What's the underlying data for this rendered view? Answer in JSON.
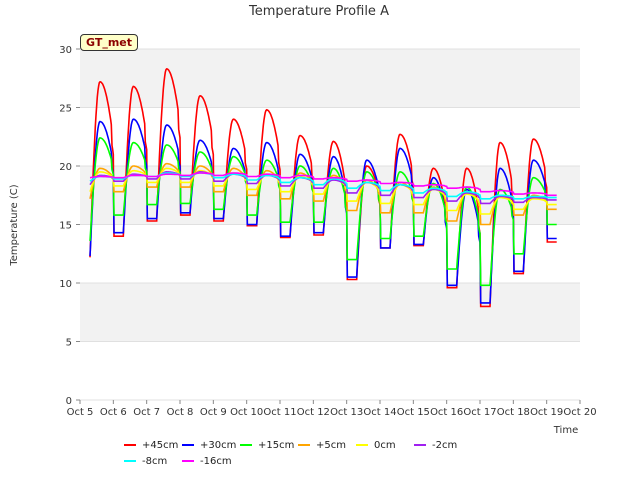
{
  "badge": "GT_met",
  "chart_data": {
    "type": "line",
    "title": "Temperature Profile A",
    "xlabel": "Time",
    "ylabel": "Temperature (C)",
    "ylim": [
      0,
      30
    ],
    "yticks": [
      0,
      5,
      10,
      15,
      20,
      25,
      30
    ],
    "xlim": [
      5,
      20
    ],
    "xticks": [
      5,
      6,
      7,
      8,
      9,
      10,
      11,
      12,
      13,
      14,
      15,
      16,
      17,
      18,
      19,
      20
    ],
    "xtick_labels": [
      "Oct 5",
      "Oct 6",
      "Oct 7",
      "Oct 8",
      "Oct 9",
      "Oct 10",
      "Oct 11",
      "Oct 12",
      "Oct 13",
      "Oct 14",
      "Oct 15",
      "Oct 16",
      "Oct 17",
      "Oct 18",
      "Oct 19",
      "Oct 20"
    ],
    "x_start": 5.3,
    "x_end": 19.3,
    "days": [
      5,
      6,
      7,
      8,
      9,
      10,
      11,
      12,
      13,
      14,
      15,
      16,
      17,
      18,
      19
    ],
    "grid": "alternating horizontal bands",
    "legend_position": "bottom",
    "series": [
      {
        "name": "+45cm",
        "color": "#ff0000",
        "maxs": [
          27.2,
          26.8,
          28.3,
          26.0,
          24.0,
          24.8,
          22.6,
          22.1,
          20.0,
          22.7,
          19.8,
          19.8,
          22.0,
          22.3
        ],
        "mins": [
          12.2,
          14.0,
          15.3,
          15.8,
          15.3,
          14.9,
          13.9,
          14.1,
          10.3,
          13.0,
          13.2,
          9.6,
          8.0,
          10.8,
          13.5
        ]
      },
      {
        "name": "+30cm",
        "color": "#0000ff",
        "maxs": [
          23.8,
          24.0,
          23.5,
          22.2,
          21.5,
          22.0,
          21.0,
          20.8,
          20.5,
          21.5,
          19.0,
          18.0,
          19.8,
          20.5
        ],
        "mins": [
          12.3,
          14.3,
          15.5,
          16.0,
          15.5,
          15.0,
          14.0,
          14.3,
          10.5,
          13.0,
          13.3,
          9.8,
          8.3,
          11.0,
          13.8
        ]
      },
      {
        "name": "+15cm",
        "color": "#00ff00",
        "maxs": [
          22.4,
          22.0,
          21.8,
          21.2,
          20.8,
          20.5,
          20.0,
          19.8,
          19.5,
          19.5,
          18.5,
          18.2,
          18.0,
          19.0
        ],
        "mins": [
          13.6,
          15.8,
          16.7,
          16.8,
          16.3,
          15.8,
          15.2,
          15.2,
          12.0,
          13.8,
          14.0,
          11.2,
          9.8,
          12.5,
          15.0
        ]
      },
      {
        "name": "+5cm",
        "color": "#ffa500",
        "maxs": [
          19.8,
          20.0,
          20.2,
          20.0,
          19.8,
          19.6,
          19.4,
          19.2,
          18.8,
          18.6,
          18.2,
          17.8,
          17.5,
          17.5
        ],
        "mins": [
          17.2,
          17.8,
          18.2,
          18.2,
          17.8,
          17.5,
          17.2,
          17.0,
          16.2,
          16.0,
          16.0,
          15.3,
          15.0,
          15.8,
          16.3
        ]
      },
      {
        "name": "0cm",
        "color": "#ffff00",
        "maxs": [
          19.5,
          19.6,
          19.8,
          19.6,
          19.4,
          19.3,
          19.1,
          18.9,
          18.6,
          18.4,
          18.0,
          17.6,
          17.3,
          17.2
        ],
        "mins": [
          17.8,
          18.3,
          18.6,
          18.6,
          18.3,
          18.0,
          17.8,
          17.6,
          17.0,
          16.8,
          16.7,
          16.2,
          15.9,
          16.3,
          16.7
        ]
      },
      {
        "name": "-2cm",
        "color": "#a020f0",
        "maxs": [
          19.2,
          19.3,
          19.5,
          19.5,
          19.3,
          19.2,
          19.0,
          18.8,
          18.6,
          18.4,
          18.0,
          17.7,
          17.4,
          17.3
        ],
        "mins": [
          18.4,
          18.7,
          18.9,
          18.9,
          18.7,
          18.5,
          18.3,
          18.1,
          17.7,
          17.5,
          17.3,
          17.0,
          16.8,
          16.9,
          17.1
        ]
      },
      {
        "name": "-8cm",
        "color": "#00ffff",
        "maxs": [
          19.1,
          19.2,
          19.4,
          19.4,
          19.3,
          19.2,
          19.0,
          18.9,
          18.6,
          18.4,
          18.1,
          17.8,
          17.5,
          17.4
        ],
        "mins": [
          18.7,
          18.9,
          19.1,
          19.1,
          19.0,
          18.8,
          18.6,
          18.4,
          18.1,
          17.9,
          17.7,
          17.4,
          17.2,
          17.2,
          17.3
        ]
      },
      {
        "name": "-16cm",
        "color": "#ff00ff",
        "maxs": [
          19.1,
          19.2,
          19.3,
          19.4,
          19.4,
          19.3,
          19.2,
          19.0,
          18.8,
          18.6,
          18.4,
          18.2,
          17.9,
          17.7
        ],
        "mins": [
          19.0,
          19.0,
          19.1,
          19.2,
          19.2,
          19.1,
          19.0,
          18.9,
          18.7,
          18.5,
          18.3,
          18.1,
          17.8,
          17.6,
          17.5
        ]
      }
    ]
  }
}
